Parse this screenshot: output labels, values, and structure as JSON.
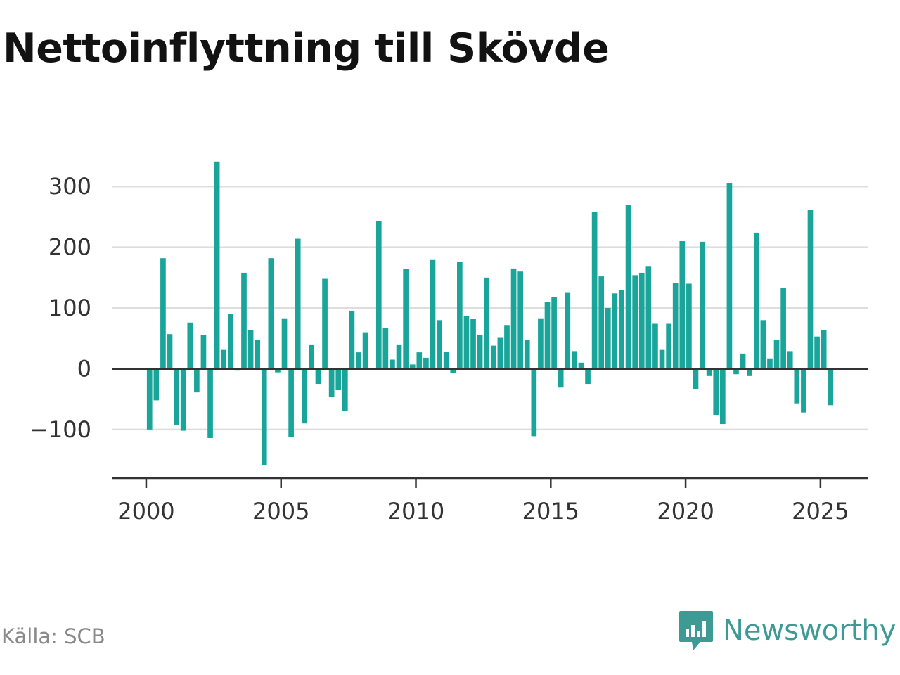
{
  "title": "Nettoinflyttning till Skövde",
  "source": "Källa: SCB",
  "brand": {
    "name": "Newsworthy",
    "icon": "newsworthy-logo-icon"
  },
  "colors": {
    "bar": "#1aa59a",
    "grid": "#dddddd",
    "zero": "#333333",
    "axis": "#333333",
    "text": "#333333",
    "brand": "#3d9a95"
  },
  "chart_data": {
    "type": "bar",
    "title": "Nettoinflyttning till Skövde",
    "xlabel": "",
    "ylabel": "",
    "ylim": [
      -180,
      350
    ],
    "xlim": [
      1998.75,
      2026.75
    ],
    "y_ticks": [
      "300",
      "200",
      "100",
      "0",
      "−100"
    ],
    "y_tick_values": [
      300,
      200,
      100,
      0,
      -100
    ],
    "x_ticks": [
      "2000",
      "2005",
      "2010",
      "2015",
      "2020",
      "2025"
    ],
    "x_tick_values": [
      2000,
      2005,
      2010,
      2015,
      2020,
      2025
    ],
    "grid": true,
    "bar_start": 2000.125,
    "bar_step": 0.25,
    "values": [
      -100,
      -52,
      182,
      57,
      -92,
      -102,
      76,
      -39,
      56,
      -114,
      341,
      31,
      90,
      -2,
      158,
      64,
      48,
      -158,
      182,
      -6,
      83,
      -112,
      214,
      -90,
      40,
      -25,
      148,
      -47,
      -35,
      -69,
      95,
      27,
      60,
      0,
      243,
      67,
      15,
      40,
      164,
      7,
      27,
      18,
      179,
      80,
      28,
      -7,
      176,
      87,
      82,
      56,
      150,
      38,
      52,
      72,
      165,
      160,
      47,
      -111,
      83,
      110,
      118,
      -31,
      126,
      29,
      10,
      -25,
      258,
      152,
      100,
      124,
      130,
      269,
      154,
      158,
      168,
      74,
      31,
      74,
      141,
      210,
      140,
      -33,
      209,
      -12,
      -76,
      -91,
      306,
      -9,
      25,
      -12,
      224,
      80,
      17,
      47,
      133,
      29,
      -57,
      -72,
      262,
      53,
      64,
      -60
    ]
  }
}
